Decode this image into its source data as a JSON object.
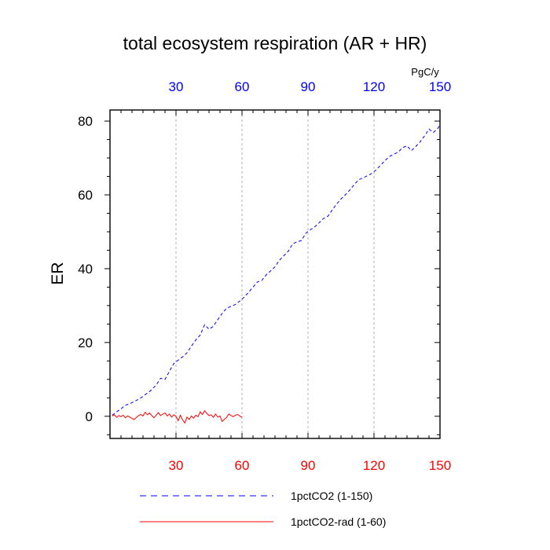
{
  "chart_data": {
    "type": "line",
    "title": "total ecosystem respiration (AR + HR)",
    "units": "PgC/y",
    "ylabel": "ER",
    "xlabel": "",
    "xlim": [
      0,
      150
    ],
    "ylim": [
      -6,
      83
    ],
    "x_ticks": [
      30,
      60,
      90,
      120,
      150
    ],
    "y_ticks": [
      0,
      20,
      40,
      60,
      80
    ],
    "grid": "vertical dashed at major x ticks",
    "top_axis_tick_color": "#0000ff",
    "bottom_axis_tick_color": "#ff0000",
    "series": [
      {
        "name": "1pctCO2 (1-150)",
        "color": "#0000ff",
        "dash": "dashed",
        "points": [
          [
            1,
            0.3
          ],
          [
            3,
            1.2
          ],
          [
            5,
            2.0
          ],
          [
            7,
            3.0
          ],
          [
            9,
            3.4
          ],
          [
            11,
            4.0
          ],
          [
            13,
            4.6
          ],
          [
            15,
            5.4
          ],
          [
            17,
            6.3
          ],
          [
            19,
            7.2
          ],
          [
            21,
            8.5
          ],
          [
            23,
            10.3
          ],
          [
            25,
            10.0
          ],
          [
            27,
            12.2
          ],
          [
            29,
            14.3
          ],
          [
            31,
            15.2
          ],
          [
            33,
            16.1
          ],
          [
            35,
            17.2
          ],
          [
            37,
            19.0
          ],
          [
            39,
            20.7
          ],
          [
            41,
            22.0
          ],
          [
            43,
            24.8
          ],
          [
            45,
            23.6
          ],
          [
            47,
            24.4
          ],
          [
            49,
            26.2
          ],
          [
            51,
            27.9
          ],
          [
            53,
            29.3
          ],
          [
            55,
            29.8
          ],
          [
            57,
            30.3
          ],
          [
            59,
            31.2
          ],
          [
            61,
            32.3
          ],
          [
            63,
            33.6
          ],
          [
            65,
            35.0
          ],
          [
            67,
            36.4
          ],
          [
            69,
            36.8
          ],
          [
            71,
            38.3
          ],
          [
            73,
            39.4
          ],
          [
            75,
            40.5
          ],
          [
            77,
            42.3
          ],
          [
            79,
            43.5
          ],
          [
            81,
            44.7
          ],
          [
            83,
            46.7
          ],
          [
            85,
            47.3
          ],
          [
            87,
            47.6
          ],
          [
            89,
            49.6
          ],
          [
            91,
            50.5
          ],
          [
            93,
            51.3
          ],
          [
            95,
            52.4
          ],
          [
            97,
            53.6
          ],
          [
            99,
            54.2
          ],
          [
            101,
            55.9
          ],
          [
            103,
            57.5
          ],
          [
            105,
            58.9
          ],
          [
            107,
            60.0
          ],
          [
            109,
            61.3
          ],
          [
            111,
            62.8
          ],
          [
            113,
            64.1
          ],
          [
            115,
            64.6
          ],
          [
            117,
            65.2
          ],
          [
            119,
            65.8
          ],
          [
            121,
            66.8
          ],
          [
            123,
            68.0
          ],
          [
            125,
            69.3
          ],
          [
            127,
            70.4
          ],
          [
            129,
            71.0
          ],
          [
            131,
            71.6
          ],
          [
            133,
            72.8
          ],
          [
            135,
            73.3
          ],
          [
            137,
            72.0
          ],
          [
            139,
            73.1
          ],
          [
            141,
            74.4
          ],
          [
            143,
            76.0
          ],
          [
            145,
            77.8
          ],
          [
            147,
            76.9
          ],
          [
            149,
            78.0
          ],
          [
            150,
            79.0
          ]
        ]
      },
      {
        "name": "1pctCO2-rad (1-60)",
        "color": "#ff0000",
        "dash": "solid",
        "points": [
          [
            1,
            0.1
          ],
          [
            2,
            0.4
          ],
          [
            3,
            -0.3
          ],
          [
            4,
            0.2
          ],
          [
            5,
            -0.1
          ],
          [
            6,
            0.3
          ],
          [
            7,
            -0.4
          ],
          [
            8,
            0.1
          ],
          [
            9,
            -0.2
          ],
          [
            10,
            -0.6
          ],
          [
            11,
            -0.9
          ],
          [
            12,
            -0.3
          ],
          [
            13,
            0.2
          ],
          [
            14,
            0.5
          ],
          [
            15,
            0.1
          ],
          [
            16,
            1.1
          ],
          [
            17,
            0.4
          ],
          [
            18,
            0.9
          ],
          [
            19,
            0.2
          ],
          [
            20,
            -0.4
          ],
          [
            21,
            0.3
          ],
          [
            22,
            1.0
          ],
          [
            23,
            0.2
          ],
          [
            24,
            0.6
          ],
          [
            25,
            0.9
          ],
          [
            26,
            0.1
          ],
          [
            27,
            0.6
          ],
          [
            28,
            -0.2
          ],
          [
            29,
            0.4
          ],
          [
            30,
            0.0
          ],
          [
            31,
            -1.2
          ],
          [
            32,
            0.3
          ],
          [
            33,
            -1.0
          ],
          [
            34,
            -1.8
          ],
          [
            35,
            -0.2
          ],
          [
            36,
            -0.9
          ],
          [
            37,
            0.1
          ],
          [
            38,
            -0.5
          ],
          [
            39,
            0.3
          ],
          [
            40,
            -0.1
          ],
          [
            41,
            1.2
          ],
          [
            42,
            0.5
          ],
          [
            43,
            1.5
          ],
          [
            44,
            0.8
          ],
          [
            45,
            0.2
          ],
          [
            46,
            0.4
          ],
          [
            47,
            -0.3
          ],
          [
            48,
            0.6
          ],
          [
            49,
            -0.2
          ],
          [
            50,
            0.1
          ],
          [
            51,
            -1.4
          ],
          [
            52,
            -0.8
          ],
          [
            53,
            -0.3
          ],
          [
            54,
            0.6
          ],
          [
            55,
            0.2
          ],
          [
            56,
            -0.1
          ],
          [
            57,
            0.3
          ],
          [
            58,
            0.5
          ],
          [
            59,
            0.1
          ],
          [
            60,
            -0.3
          ]
        ]
      }
    ]
  }
}
